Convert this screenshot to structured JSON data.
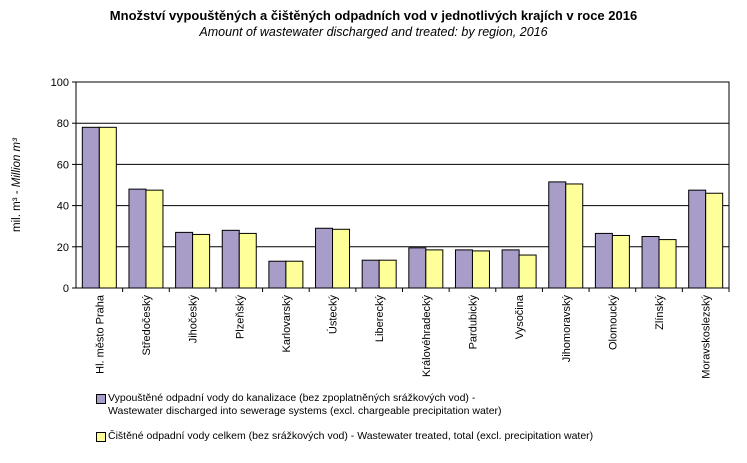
{
  "chart_data": {
    "type": "bar",
    "title": "Množství vypouštěných a čištěných odpadních vod v jednotlivých krajích v roce 2016",
    "subtitle": "Amount of wastewater discharged and treated: by region, 2016",
    "ylabel_cz": "mil. m³ - ",
    "ylabel_en": "Million m³",
    "ylim": [
      0,
      100
    ],
    "yticks": [
      0,
      20,
      40,
      60,
      80,
      100
    ],
    "grid": true,
    "legend_position": "bottom",
    "categories": [
      "Hl. město Praha",
      "Středočeský",
      "Jihočeský",
      "Plzeňský",
      "Karlovarský",
      "Ústecký",
      "Liberecký",
      "Královéhradecký",
      "Pardubický",
      "Vysočina",
      "Jihomoravský",
      "Olomoucký",
      "Zlínský",
      "Moravskoslezský"
    ],
    "series": [
      {
        "name_line1": "Vypouštěné odpadní vody do kanalizace (bez zpoplatněných srážkových vod) -",
        "name_line2": "Wastewater discharged into sewerage systems (excl. chargeable precipitation water)",
        "color": "#a89cc8",
        "values": [
          78,
          48,
          27,
          28,
          13,
          29,
          13.5,
          19.5,
          18.5,
          18.5,
          51.5,
          26.5,
          25,
          47.5
        ]
      },
      {
        "name_line1": "Čištěné odpadní vody celkem (bez srážkových vod) - Wastewater treated, total (excl. precipitation water)",
        "color": "#ffff99",
        "values": [
          78,
          47.5,
          26,
          26.5,
          13,
          28.5,
          13.5,
          18.5,
          18,
          16,
          50.5,
          25.5,
          23.5,
          46
        ]
      }
    ]
  }
}
